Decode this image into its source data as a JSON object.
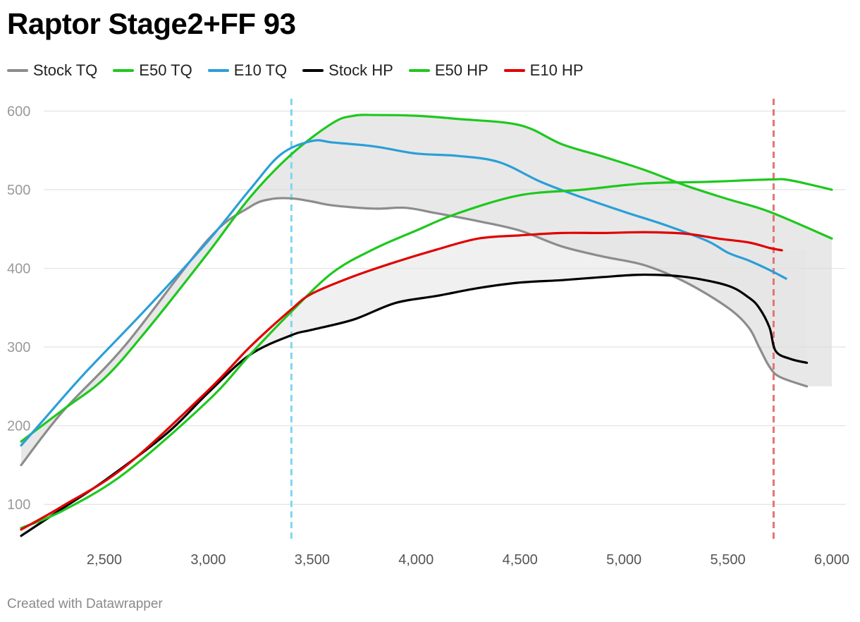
{
  "title": "Raptor Stage2+FF 93",
  "footer": "Created with Datawrapper",
  "chart_data": {
    "type": "line",
    "title": "Raptor Stage2+FF 93",
    "xlabel": "",
    "ylabel": "",
    "xlim": [
      2100,
      6000
    ],
    "ylim": [
      50,
      630
    ],
    "x_ticks": [
      2500,
      3000,
      3500,
      4000,
      4500,
      5000,
      5500,
      6000
    ],
    "x_tick_labels": [
      "2,500",
      "3,000",
      "3,500",
      "4,000",
      "4,500",
      "5,000",
      "5,500",
      "6,000"
    ],
    "y_ticks": [
      100,
      200,
      300,
      400,
      500,
      600
    ],
    "y_tick_labels": [
      "100",
      "200",
      "300",
      "400",
      "500",
      "600"
    ],
    "grid": "horizontal",
    "legend_position": "top-left",
    "vertical_markers": [
      {
        "x": 3400,
        "color": "#7fd6f0"
      },
      {
        "x": 5720,
        "color": "#e57373"
      }
    ],
    "shaded_ranges": [
      {
        "between": [
          "Stock TQ",
          "E50 TQ"
        ],
        "color": "#d6d6d6"
      },
      {
        "between": [
          "Stock HP",
          "E10 HP"
        ],
        "color": "#e3e3e3"
      }
    ],
    "series": [
      {
        "name": "Stock TQ",
        "color": "#8c8c8c",
        "x": [
          2100,
          2300,
          2600,
          3000,
          3200,
          3300,
          3400,
          3500,
          3600,
          3800,
          3950,
          4100,
          4300,
          4500,
          4700,
          4900,
          5100,
          5300,
          5500,
          5600,
          5650,
          5700,
          5750,
          5880
        ],
        "y": [
          150,
          218,
          302,
          437,
          478,
          488,
          489,
          485,
          480,
          476,
          477,
          470,
          460,
          448,
          428,
          415,
          404,
          382,
          350,
          325,
          300,
          275,
          262,
          250
        ]
      },
      {
        "name": "E50 TQ",
        "color": "#1ec81e",
        "x": [
          2100,
          2300,
          2500,
          2700,
          3000,
          3200,
          3400,
          3600,
          3700,
          3800,
          4000,
          4200,
          4500,
          4700,
          4900,
          5100,
          5300,
          5500,
          5700,
          6000
        ],
        "y": [
          180,
          220,
          260,
          320,
          420,
          490,
          545,
          585,
          594,
          595,
          594,
          590,
          582,
          558,
          542,
          525,
          505,
          488,
          472,
          438
        ]
      },
      {
        "name": "E10 TQ",
        "color": "#2a9fd8",
        "x": [
          2100,
          2200,
          2400,
          2700,
          3000,
          3200,
          3350,
          3500,
          3600,
          3800,
          4000,
          4200,
          4400,
          4600,
          4800,
          5000,
          5200,
          5400,
          5500,
          5600,
          5700,
          5780
        ],
        "y": [
          175,
          205,
          265,
          348,
          435,
          500,
          545,
          562,
          560,
          555,
          546,
          543,
          535,
          510,
          490,
          472,
          455,
          435,
          420,
          410,
          398,
          387
        ]
      },
      {
        "name": "Stock HP",
        "color": "#000000",
        "x": [
          2100,
          2300,
          2500,
          2800,
          3000,
          3200,
          3400,
          3500,
          3700,
          3900,
          4100,
          4300,
          4500,
          4700,
          4900,
          5100,
          5300,
          5500,
          5600,
          5650,
          5700,
          5730,
          5800,
          5880
        ],
        "y": [
          60,
          95,
          130,
          190,
          242,
          290,
          315,
          322,
          335,
          356,
          365,
          375,
          382,
          385,
          389,
          392,
          389,
          378,
          363,
          350,
          325,
          295,
          285,
          280
        ]
      },
      {
        "name": "E50 HP",
        "color": "#1ec81e",
        "x": [
          2100,
          2300,
          2600,
          3000,
          3200,
          3400,
          3600,
          3800,
          4000,
          4200,
          4500,
          4800,
          5100,
          5400,
          5700,
          5800,
          6000
        ],
        "y": [
          70,
          92,
          140,
          232,
          290,
          345,
          395,
          425,
          448,
          470,
          493,
          500,
          508,
          510,
          513,
          512,
          500
        ]
      },
      {
        "name": "E10 HP",
        "color": "#e00000",
        "x": [
          2100,
          2300,
          2600,
          3000,
          3200,
          3400,
          3500,
          3700,
          3900,
          4100,
          4300,
          4500,
          4700,
          4900,
          5100,
          5300,
          5450,
          5600,
          5700,
          5760
        ],
        "y": [
          68,
          98,
          148,
          245,
          300,
          348,
          368,
          390,
          408,
          424,
          438,
          442,
          445,
          445,
          446,
          444,
          438,
          433,
          426,
          423
        ]
      }
    ]
  }
}
